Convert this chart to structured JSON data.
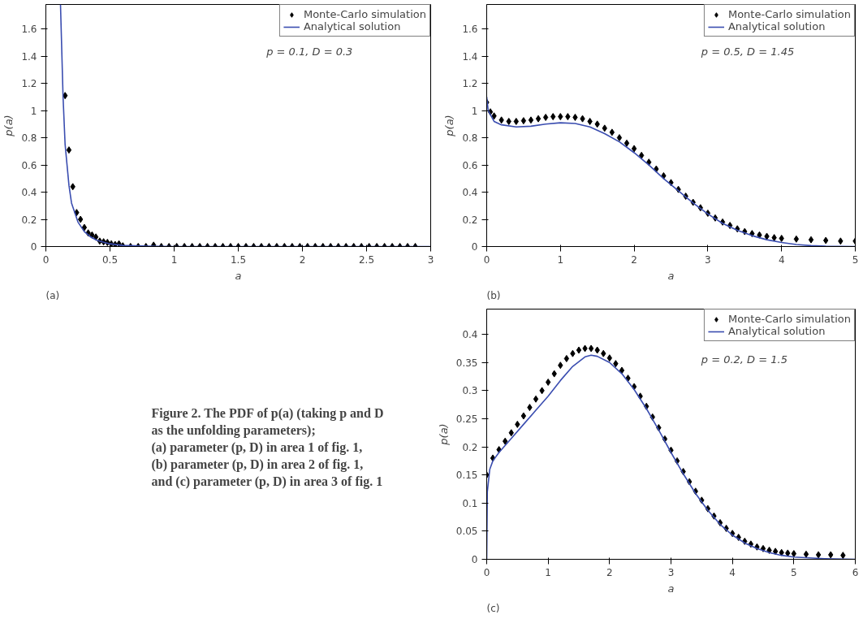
{
  "chart_data": [
    {
      "type": "scatter",
      "xlabel": "a",
      "ylabel": "p(a)",
      "xlim": [
        0,
        3
      ],
      "ylim": [
        0,
        1.78
      ],
      "xticks": [
        0,
        0.5,
        1,
        1.5,
        2,
        2.5,
        3
      ],
      "yticks": [
        0,
        0.2,
        0.4,
        0.6,
        0.8,
        1,
        1.2,
        1.4,
        1.6
      ],
      "legend": "top right",
      "grid": false,
      "annotations": [
        "(a)",
        "p = 0.1, D = 0.3"
      ],
      "series": [
        {
          "name": "Monte-Carlo simulation",
          "type": "scatter",
          "marker": "diamond",
          "color": "#000000",
          "x": [
            0.15,
            0.18,
            0.21,
            0.24,
            0.27,
            0.3,
            0.33,
            0.36,
            0.39,
            0.42,
            0.45,
            0.48,
            0.51,
            0.54,
            0.57,
            0.6,
            0.66,
            0.72,
            0.78,
            0.84,
            0.9,
            0.96,
            1.02,
            1.08,
            1.14,
            1.2,
            1.26,
            1.32,
            1.38,
            1.44,
            1.5,
            1.56,
            1.62,
            1.68,
            1.74,
            1.8,
            1.86,
            1.92,
            1.98,
            2.04,
            2.1,
            2.16,
            2.22,
            2.28,
            2.34,
            2.4,
            2.46,
            2.52,
            2.58,
            2.64,
            2.7,
            2.76,
            2.82,
            2.88
          ],
          "values": [
            1.11,
            0.71,
            0.44,
            0.25,
            0.2,
            0.14,
            0.1,
            0.085,
            0.07,
            0.04,
            0.035,
            0.03,
            0.02,
            0.015,
            0.02,
            0.005,
            0,
            0,
            0,
            0.01,
            0,
            0,
            0,
            0,
            0,
            0,
            0,
            0,
            0,
            0,
            0,
            0,
            0,
            0,
            0,
            0,
            0,
            0,
            0,
            0,
            0,
            0,
            0,
            0,
            0,
            0,
            0,
            0,
            0,
            0,
            0,
            0,
            0,
            0
          ]
        },
        {
          "name": "Analytical solution",
          "type": "line",
          "color": "#3a4db0",
          "x": [
            0.114,
            0.134,
            0.15,
            0.18,
            0.2,
            0.25,
            0.3,
            0.35,
            0.4,
            0.5,
            0.6,
            0.8,
            1,
            3
          ],
          "values": [
            1.78,
            1.1,
            0.75,
            0.45,
            0.32,
            0.18,
            0.11,
            0.07,
            0.045,
            0.02,
            0.008,
            0.002,
            0,
            0
          ]
        }
      ]
    },
    {
      "type": "scatter",
      "xlabel": "a",
      "ylabel": "p(a)",
      "xlim": [
        0,
        5
      ],
      "ylim": [
        0,
        1.78
      ],
      "xticks": [
        0,
        1,
        2,
        3,
        4,
        5
      ],
      "yticks": [
        0,
        0.2,
        0.4,
        0.6,
        0.8,
        1,
        1.2,
        1.4,
        1.6
      ],
      "legend": "top right",
      "grid": false,
      "annotations": [
        "(b)",
        "p = 0.5, D = 1.45"
      ],
      "series": [
        {
          "name": "Monte-Carlo simulation",
          "type": "scatter",
          "marker": "diamond",
          "color": "#000000",
          "x": [
            0,
            0.05,
            0.1,
            0.2,
            0.3,
            0.4,
            0.5,
            0.6,
            0.7,
            0.8,
            0.9,
            1,
            1.1,
            1.2,
            1.3,
            1.4,
            1.5,
            1.6,
            1.7,
            1.8,
            1.9,
            2,
            2.1,
            2.2,
            2.3,
            2.4,
            2.5,
            2.6,
            2.7,
            2.8,
            2.9,
            3,
            3.1,
            3.2,
            3.3,
            3.4,
            3.5,
            3.6,
            3.7,
            3.8,
            3.9,
            4,
            4.2,
            4.4,
            4.6,
            4.8,
            5
          ],
          "values": [
            1.06,
            0.99,
            0.96,
            0.93,
            0.92,
            0.92,
            0.925,
            0.93,
            0.94,
            0.95,
            0.955,
            0.955,
            0.955,
            0.95,
            0.94,
            0.92,
            0.9,
            0.87,
            0.84,
            0.8,
            0.76,
            0.72,
            0.67,
            0.62,
            0.57,
            0.52,
            0.47,
            0.42,
            0.37,
            0.325,
            0.285,
            0.245,
            0.21,
            0.18,
            0.155,
            0.13,
            0.11,
            0.095,
            0.085,
            0.075,
            0.065,
            0.06,
            0.055,
            0.05,
            0.045,
            0.04,
            0.04
          ]
        },
        {
          "name": "Analytical solution",
          "type": "line",
          "color": "#3a4db0",
          "x": [
            0,
            0.02,
            0.1,
            0.2,
            0.4,
            0.6,
            0.8,
            1,
            1.2,
            1.4,
            1.6,
            1.8,
            2,
            2.2,
            2.4,
            2.6,
            2.8,
            3,
            3.2,
            3.4,
            3.6,
            3.8,
            4,
            4.2,
            4.4,
            4.6,
            5
          ],
          "values": [
            1.1,
            1,
            0.92,
            0.895,
            0.88,
            0.885,
            0.9,
            0.91,
            0.905,
            0.88,
            0.83,
            0.77,
            0.69,
            0.6,
            0.5,
            0.41,
            0.32,
            0.24,
            0.17,
            0.12,
            0.08,
            0.05,
            0.03,
            0.015,
            0.007,
            0.003,
            0
          ]
        }
      ]
    },
    {
      "type": "other",
      "annotations": [
        "Figure 2. The PDF of p(a) (taking p and D",
        "as the unfolding parameters);",
        "(a) parameter (p, D) in area 1 of fig. 1,",
        "(b) parameter (p, D) in area 2 of fig. 1,",
        "and (c) parameter (p, D) in area 3 of fig. 1"
      ]
    },
    {
      "type": "scatter",
      "xlabel": "a",
      "ylabel": "p(a)",
      "xlim": [
        0,
        6
      ],
      "ylim": [
        0,
        0.445
      ],
      "xticks": [
        0,
        1,
        2,
        3,
        4,
        5,
        6
      ],
      "yticks": [
        0,
        0.05,
        0.1,
        0.15,
        0.2,
        0.25,
        0.3,
        0.35,
        0.4
      ],
      "legend": "top right",
      "grid": false,
      "annotations": [
        "(c)",
        "p = 0.2, D = 1.5"
      ],
      "series": [
        {
          "name": "Monte-Carlo simulation",
          "type": "scatter",
          "marker": "diamond",
          "color": "#000000",
          "x": [
            0,
            0.1,
            0.2,
            0.3,
            0.4,
            0.5,
            0.6,
            0.7,
            0.8,
            0.9,
            1,
            1.1,
            1.2,
            1.3,
            1.4,
            1.5,
            1.6,
            1.7,
            1.8,
            1.9,
            2,
            2.1,
            2.2,
            2.3,
            2.4,
            2.5,
            2.6,
            2.7,
            2.8,
            2.9,
            3,
            3.1,
            3.2,
            3.3,
            3.4,
            3.5,
            3.6,
            3.7,
            3.8,
            3.9,
            4,
            4.1,
            4.2,
            4.3,
            4.4,
            4.5,
            4.6,
            4.7,
            4.8,
            4.9,
            5,
            5.2,
            5.4,
            5.6,
            5.8
          ],
          "values": [
            0.15,
            0.18,
            0.195,
            0.21,
            0.225,
            0.24,
            0.255,
            0.27,
            0.285,
            0.3,
            0.315,
            0.33,
            0.345,
            0.357,
            0.366,
            0.372,
            0.375,
            0.375,
            0.372,
            0.366,
            0.358,
            0.348,
            0.336,
            0.322,
            0.307,
            0.29,
            0.272,
            0.253,
            0.234,
            0.214,
            0.194,
            0.175,
            0.156,
            0.138,
            0.121,
            0.105,
            0.09,
            0.077,
            0.065,
            0.055,
            0.046,
            0.039,
            0.032,
            0.027,
            0.022,
            0.019,
            0.016,
            0.014,
            0.012,
            0.011,
            0.01,
            0.009,
            0.008,
            0.008,
            0.007
          ]
        },
        {
          "name": "Analytical solution",
          "type": "line",
          "color": "#3a4db0",
          "x": [
            0,
            0.01,
            0.05,
            0.1,
            0.2,
            0.4,
            0.6,
            0.8,
            1,
            1.2,
            1.4,
            1.6,
            1.7,
            1.8,
            2,
            2.2,
            2.4,
            2.6,
            2.8,
            3,
            3.2,
            3.4,
            3.6,
            3.8,
            4,
            4.2,
            4.4,
            4.6,
            4.8,
            5,
            5.5,
            6
          ],
          "values": [
            0,
            0.12,
            0.16,
            0.175,
            0.19,
            0.215,
            0.24,
            0.265,
            0.29,
            0.318,
            0.343,
            0.36,
            0.363,
            0.361,
            0.35,
            0.33,
            0.302,
            0.268,
            0.23,
            0.19,
            0.152,
            0.117,
            0.087,
            0.062,
            0.043,
            0.029,
            0.019,
            0.012,
            0.007,
            0.004,
            0.001,
            0
          ]
        }
      ]
    }
  ]
}
